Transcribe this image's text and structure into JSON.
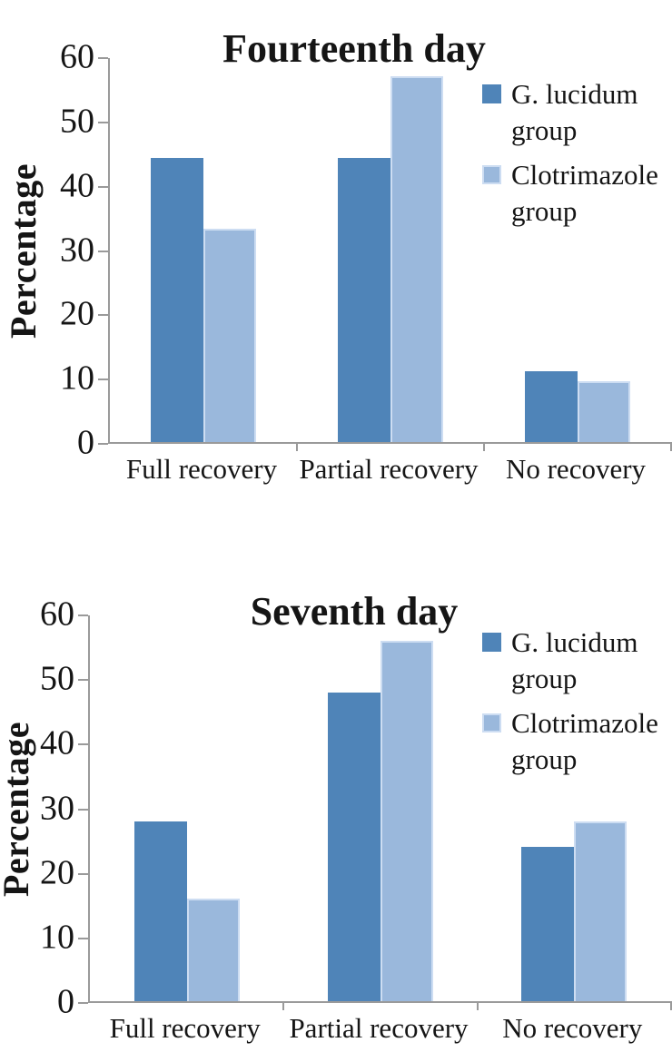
{
  "chart_data": [
    {
      "type": "bar",
      "title": "Fourteenth day",
      "ylabel": "Percentage",
      "xlabel": "",
      "ylim": [
        0,
        60
      ],
      "yticks": [
        0,
        10,
        20,
        30,
        40,
        50,
        60
      ],
      "grid": false,
      "legend_position": "right-inside",
      "categories": [
        "Full recovery",
        "Partial recovery",
        "No recovery"
      ],
      "series": [
        {
          "name": "G. lucidum group",
          "color": "#4f84b8",
          "values": [
            44.4,
            44.4,
            11.1
          ]
        },
        {
          "name": "Clotrimazole group",
          "color": "#9ab8dc",
          "border_color": "#cdddf2",
          "values": [
            33.3,
            57.1,
            9.5
          ]
        }
      ]
    },
    {
      "type": "bar",
      "title": "Seventh day",
      "ylabel": "Percentage",
      "xlabel": "",
      "ylim": [
        0,
        60
      ],
      "yticks": [
        0,
        10,
        20,
        30,
        40,
        50,
        60
      ],
      "grid": false,
      "legend_position": "right-inside",
      "categories": [
        "Full recovery",
        "Partial recovery",
        "No recovery"
      ],
      "series": [
        {
          "name": "G. lucidum group",
          "color": "#4f84b8",
          "values": [
            28,
            48,
            24
          ]
        },
        {
          "name": "Clotrimazole group",
          "color": "#9ab8dc",
          "border_color": "#cdddf2",
          "values": [
            16,
            56,
            28
          ]
        }
      ]
    }
  ],
  "colors": {
    "axis": "#9a9a9a",
    "text": "#151515",
    "series_dark": "#4f84b8",
    "series_light": "#9ab8dc"
  }
}
